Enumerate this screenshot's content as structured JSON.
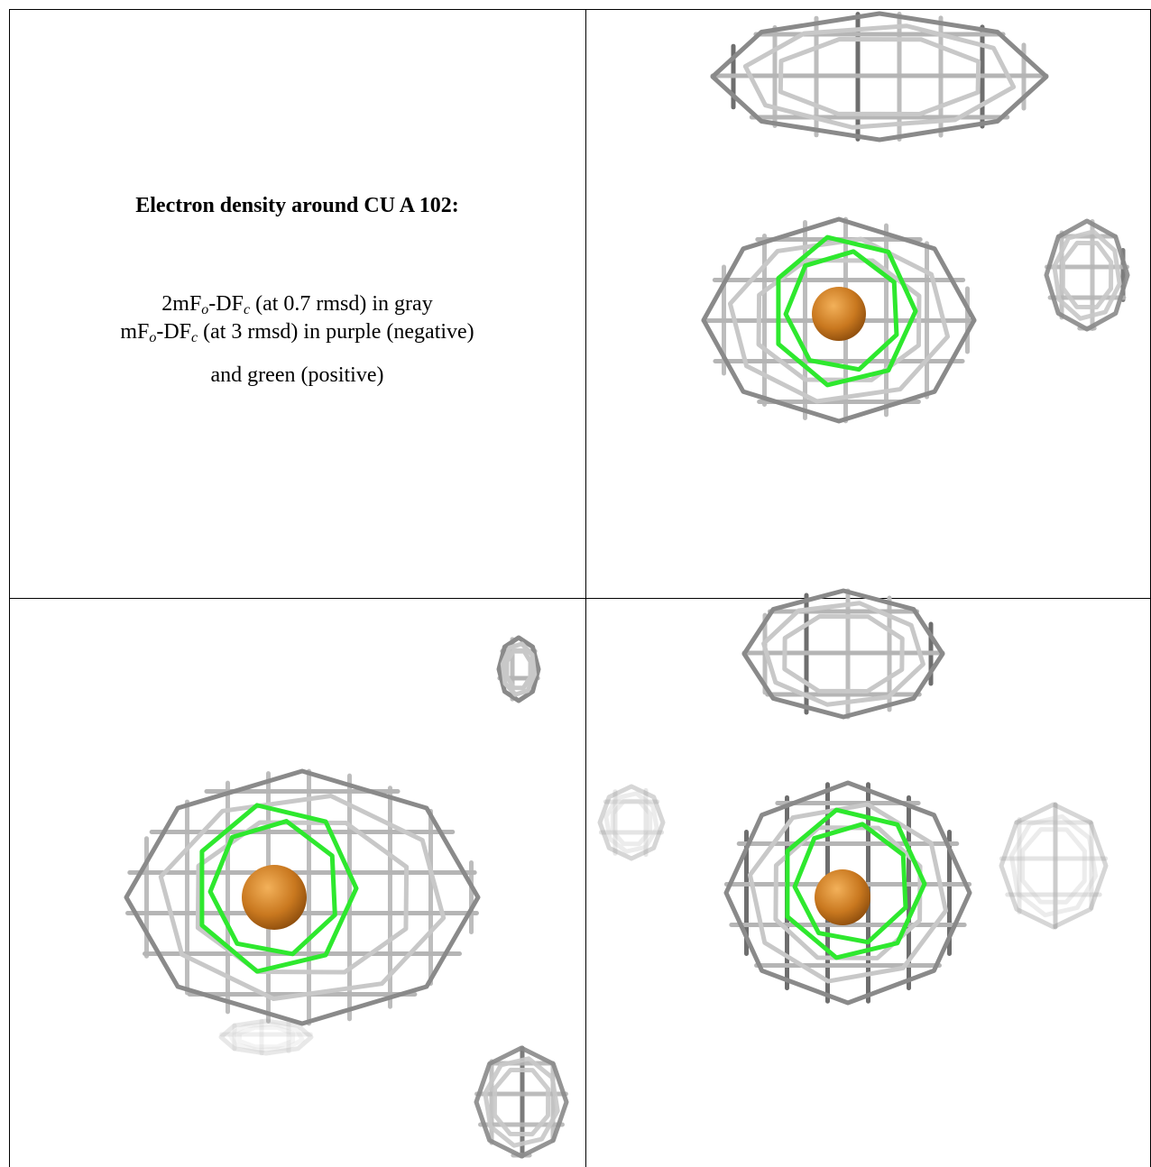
{
  "caption": {
    "title": "Electron density around CU A 102:",
    "lines": [
      [
        {
          "text": "2mF"
        },
        {
          "sub": "o"
        },
        {
          "text": "-DF"
        },
        {
          "sub": "c"
        },
        {
          "text": " (at 0.7 rmsd) in gray"
        }
      ],
      [
        {
          "text": "mF"
        },
        {
          "sub": "o"
        },
        {
          "text": "-DF"
        },
        {
          "sub": "c"
        },
        {
          "text": " (at 3 rmsd) in purple (negative)"
        }
      ],
      [
        {
          "text": "and green (positive)"
        }
      ]
    ]
  }
}
